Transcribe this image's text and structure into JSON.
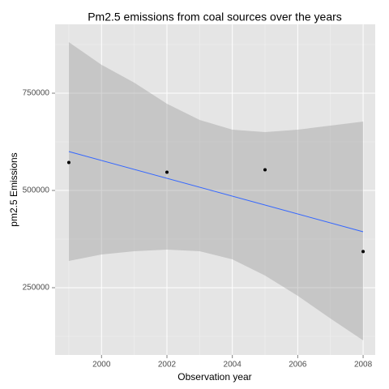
{
  "chart_data": {
    "type": "scatter",
    "title": "Pm2.5 emissions from coal sources over the years",
    "x_label": "Observation year",
    "y_label": "pm2.5 Emissions",
    "x": [
      1999,
      2002,
      2005,
      2008
    ],
    "values": [
      572000,
      547000,
      553000,
      343000
    ],
    "point_color": "#000000",
    "fit": {
      "color": "#3366ff",
      "x": [
        1999,
        2008
      ],
      "values": [
        600000,
        393750
      ]
    },
    "band": {
      "color": "#999999",
      "x": [
        1999,
        2000,
        2001,
        2002,
        2003,
        2004,
        2005,
        2006,
        2007,
        2008
      ],
      "upper": [
        881250,
        822917,
        777083,
        722917,
        681250,
        656250,
        650000,
        656250,
        666667,
        677083
      ],
      "lower": [
        318750,
        335417,
        343750,
        347917,
        343750,
        322917,
        281250,
        229167,
        170833,
        114583
      ]
    },
    "xlim": [
      1998.58,
      2008.37
    ],
    "xticks": [
      2000,
      2002,
      2004,
      2006,
      2008
    ],
    "xminor": [
      1999,
      2001,
      2003,
      2005,
      2007
    ],
    "ylim": [
      77083,
      927083
    ],
    "yticks": [
      250000,
      500000,
      750000
    ],
    "yminor": [
      125000,
      375000,
      625000,
      875000
    ],
    "grid": true
  }
}
